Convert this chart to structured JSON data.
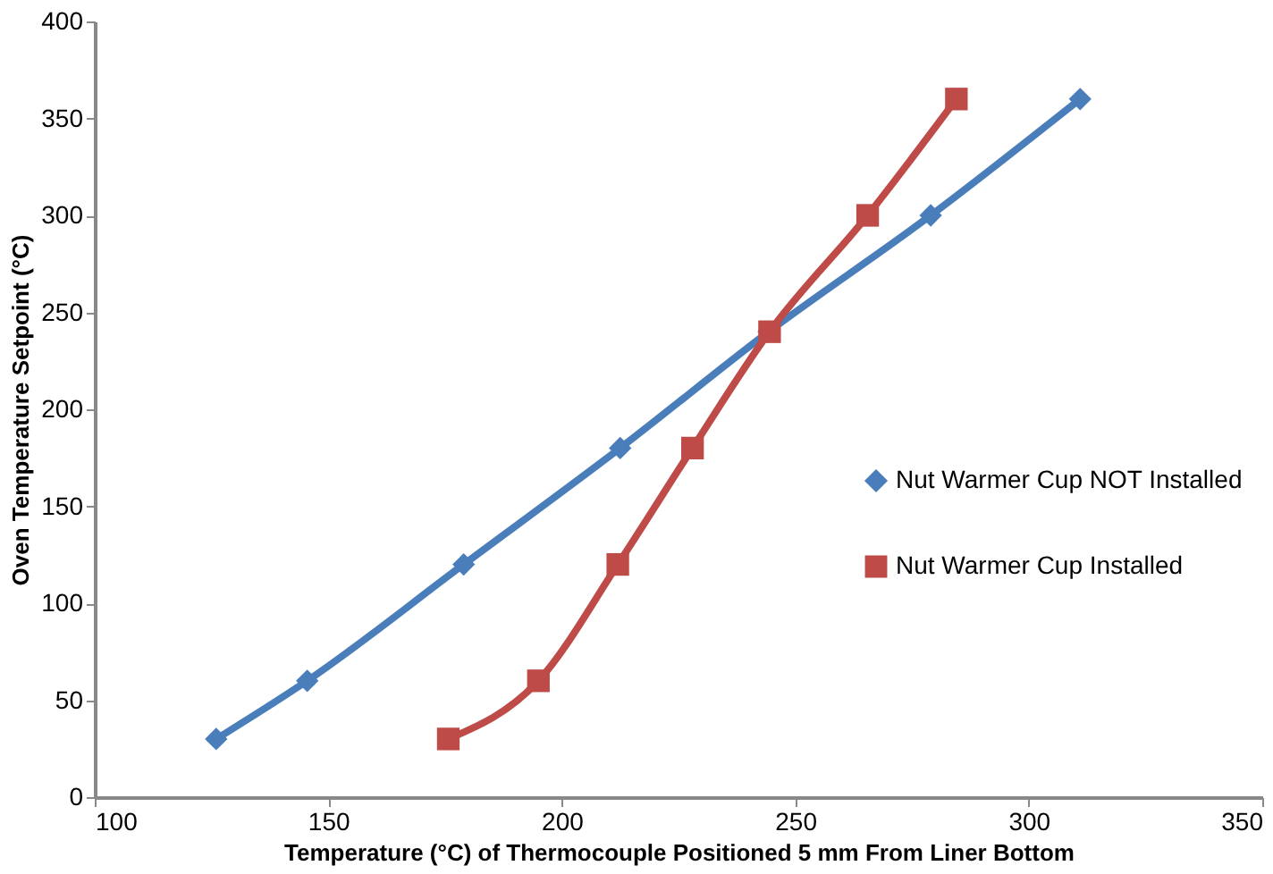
{
  "chart_data": {
    "type": "line",
    "xlabel": "Temperature (°C) of Thermocouple Positioned 5 mm From Liner Bottom",
    "ylabel": "Oven Temperature Setpoint (°C)",
    "xlim": [
      100,
      350
    ],
    "xticks": [
      100,
      150,
      200,
      250,
      300,
      350
    ],
    "ylim": [
      0,
      400
    ],
    "yticks": [
      0,
      50,
      100,
      150,
      200,
      250,
      300,
      350,
      400
    ],
    "grid": false,
    "legend": "right",
    "series": [
      {
        "name": "Nut Warmer Cup NOT Installed",
        "color": "#4a7ebb",
        "marker": "diamond",
        "x": [
          126,
          145.5,
          179,
          212.5,
          244.3,
          279,
          311
        ],
        "values": [
          30,
          60,
          120,
          180,
          240,
          300,
          360
        ]
      },
      {
        "name": "Nut Warmer Cup Installed",
        "color": "#be4b48",
        "marker": "square",
        "x": [
          175.7,
          195,
          212,
          228,
          244.5,
          265.5,
          284.5
        ],
        "values": [
          30,
          60,
          120,
          180,
          240,
          300,
          360
        ]
      }
    ]
  }
}
